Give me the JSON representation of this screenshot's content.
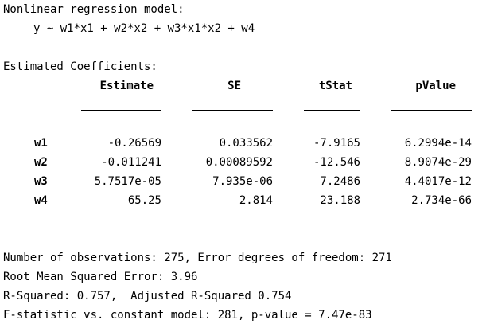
{
  "model": {
    "title": "Nonlinear regression model:",
    "formula": "y ~ w1*x1 + w2*x2 + w3*x1*x2 + w4"
  },
  "coefficients": {
    "title": "Estimated Coefficients:",
    "headers": [
      "Estimate",
      "SE",
      "tStat",
      "pValue"
    ],
    "rows": [
      {
        "name": "w1",
        "estimate": "-0.26569",
        "se": "0.033562",
        "tstat": "-7.9165",
        "pvalue": "6.2994e-14"
      },
      {
        "name": "w2",
        "estimate": "-0.011241",
        "se": "0.00089592",
        "tstat": "-12.546",
        "pvalue": "8.9074e-29"
      },
      {
        "name": "w3",
        "estimate": "5.7517e-05",
        "se": "7.935e-06",
        "tstat": "7.2486",
        "pvalue": "4.4017e-12"
      },
      {
        "name": "w4",
        "estimate": "65.25",
        "se": "2.814",
        "tstat": "23.188",
        "pvalue": "2.734e-66"
      }
    ]
  },
  "summary": {
    "line1": "Number of observations: 275, Error degrees of freedom: 271",
    "line2": "Root Mean Squared Error: 3.96",
    "line3": "R-Squared: 0.757,  Adjusted R-Squared 0.754",
    "line4": "F-statistic vs. constant model: 281, p-value = 7.47e-83"
  }
}
